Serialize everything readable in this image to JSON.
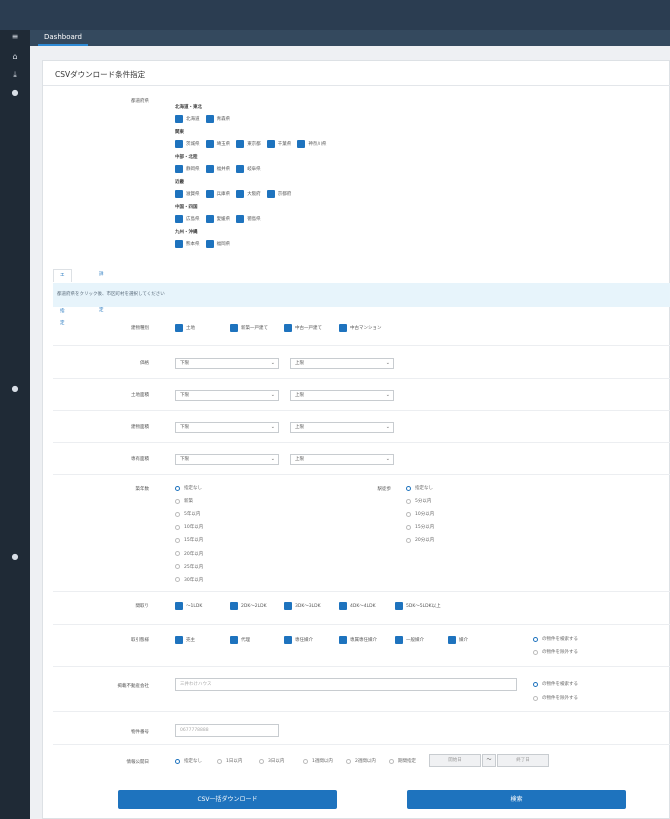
{
  "header": {
    "tab_label": "Dashboard"
  },
  "sidebar": {
    "icons": [
      "menu-icon",
      "home-icon",
      "download-icon",
      "user-icon",
      "user-icon",
      "user-icon"
    ]
  },
  "panel": {
    "title": "CSVダウンロード条件指定"
  },
  "prefecture": {
    "label": "都道府県",
    "groups": [
      {
        "name": "北海道・東北",
        "items": [
          "北海道",
          "青森県"
        ]
      },
      {
        "name": "関東",
        "items": [
          "茨城県",
          "埼玉県",
          "東京都",
          "千葉県",
          "神奈川県"
        ]
      },
      {
        "name": "中部・北陸",
        "items": [
          "静岡県",
          "福井県",
          "岐阜県"
        ]
      },
      {
        "name": "近畿",
        "items": [
          "滋賀県",
          "兵庫県",
          "大阪府",
          "京都府"
        ]
      },
      {
        "name": "中国・四国",
        "items": [
          "広島県",
          "愛媛県",
          "徳島県"
        ]
      },
      {
        "name": "九州・沖縄",
        "items": [
          "熊本県",
          "福岡県"
        ]
      }
    ]
  },
  "subtabs": [
    "エリア指定",
    "詳細指定"
  ],
  "info_text": "都道府県をクリック後、市区町村を選択してください",
  "property_type": {
    "label": "建物種別",
    "items": [
      "土地",
      "新築一戸建て",
      "中古一戸建て",
      "中古マンション"
    ]
  },
  "ranges": [
    {
      "label": "価格",
      "min": "下限",
      "max": "上限"
    },
    {
      "label": "土地面積",
      "min": "下限",
      "max": "上限"
    },
    {
      "label": "建物面積",
      "min": "下限",
      "max": "上限"
    },
    {
      "label": "専有面積",
      "min": "下限",
      "max": "上限"
    }
  ],
  "age": {
    "label": "築年数",
    "options": [
      "指定なし",
      "新築",
      "5年以内",
      "10年以内",
      "15年以内",
      "20年以内",
      "25年以内",
      "30年以内"
    ],
    "selected": 0
  },
  "walk": {
    "label": "駅徒歩",
    "options": [
      "指定なし",
      "5分以内",
      "10分以内",
      "15分以内",
      "20分以内"
    ],
    "selected": 0
  },
  "layout": {
    "label": "間取り",
    "items": [
      "～1LDK",
      "2DK～2LDK",
      "3DK～3LDK",
      "4DK～4LDK",
      "5DK～5LDK以上"
    ]
  },
  "deal": {
    "label": "取引態様",
    "items": [
      "売主",
      "代理",
      "専任媒介",
      "専属専任媒介",
      "一般媒介",
      "媒介"
    ],
    "opts": [
      "の物件を検索する",
      "の物件を除外する"
    ]
  },
  "company": {
    "label": "掲載不動産会社",
    "placeholder": "三井わけハウス",
    "opts": [
      "の物件を検索する",
      "の物件を除外する"
    ]
  },
  "number": {
    "label": "物件番号",
    "placeholder": "0677778888"
  },
  "publish": {
    "label": "情報公開日",
    "options": [
      "指定なし",
      "1日以内",
      "3日以内",
      "1週間以内",
      "2週間以内",
      "期間指定"
    ],
    "start": "開始日",
    "tilde": "〜",
    "end": "終了日"
  },
  "buttons": {
    "csv": "CSV一括ダウンロード",
    "search": "検索"
  }
}
